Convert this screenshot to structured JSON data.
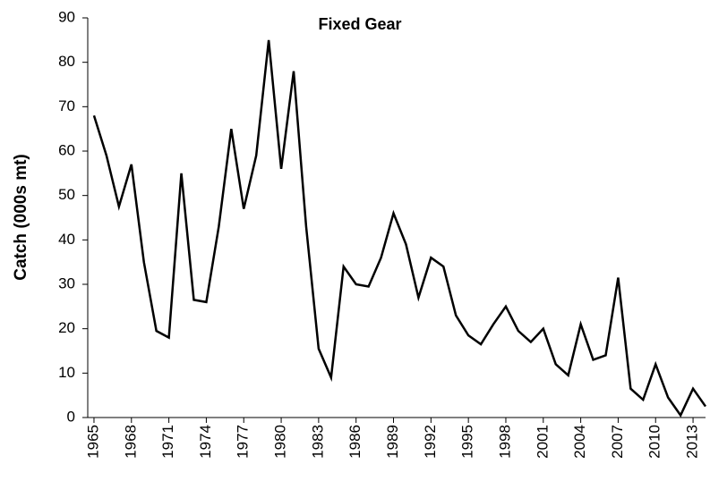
{
  "chart_data": {
    "type": "line",
    "title": "Fixed Gear",
    "y_label": "Catch (000s mt)",
    "x": [
      1965,
      1966,
      1967,
      1968,
      1969,
      1970,
      1971,
      1972,
      1973,
      1974,
      1975,
      1976,
      1977,
      1978,
      1979,
      1980,
      1981,
      1982,
      1983,
      1984,
      1985,
      1986,
      1987,
      1988,
      1989,
      1990,
      1991,
      1992,
      1993,
      1994,
      1995,
      1996,
      1997,
      1998,
      1999,
      2000,
      2001,
      2002,
      2003,
      2004,
      2005,
      2006,
      2007,
      2008,
      2009,
      2010,
      2011,
      2012,
      2013,
      2014
    ],
    "series": [
      {
        "name": "Fixed Gear",
        "color": "#000000",
        "values": [
          68,
          59,
          47.5,
          57,
          35,
          19.5,
          18,
          55,
          26.5,
          26,
          43,
          65,
          47,
          59,
          85,
          56,
          78,
          43,
          15.5,
          9,
          34,
          30,
          29.5,
          36,
          46,
          39,
          27,
          36,
          34,
          23,
          18.5,
          16.5,
          21,
          25,
          19.5,
          17,
          20,
          12,
          9.5,
          21,
          13,
          14,
          31.5,
          6.5,
          4,
          12,
          4.5,
          0.5,
          6.5,
          2.5
        ]
      }
    ],
    "xlim": [
      1964.5,
      2014
    ],
    "xticks": [
      1965,
      1968,
      1971,
      1974,
      1977,
      1980,
      1983,
      1986,
      1989,
      1992,
      1995,
      1998,
      2001,
      2004,
      2007,
      2010,
      2013
    ],
    "ylim": [
      0,
      90
    ],
    "yticks": [
      0,
      10,
      20,
      30,
      40,
      50,
      60,
      70,
      80,
      90
    ],
    "grid": false
  }
}
